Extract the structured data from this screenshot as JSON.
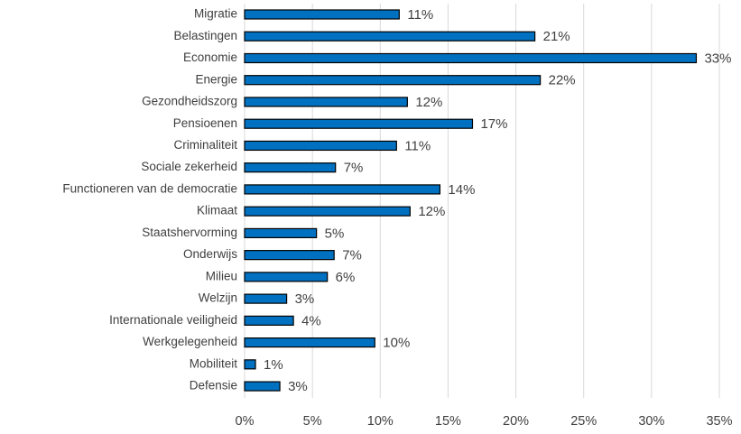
{
  "chart_data": {
    "type": "barh",
    "categories": [
      "Migratie",
      "Belastingen",
      "Economie",
      "Energie",
      "Gezondheidszorg",
      "Pensioenen",
      "Criminaliteit",
      "Sociale zekerheid",
      "Functioneren van de democratie",
      "Klimaat",
      "Staatshervorming",
      "Onderwijs",
      "Milieu",
      "Welzijn",
      "Internationale veiligheid",
      "Werkgelegenheid",
      "Mobiliteit",
      "Defensie"
    ],
    "values": [
      11.4,
      21.4,
      33.3,
      21.8,
      12.0,
      16.8,
      11.2,
      6.7,
      14.4,
      12.2,
      5.3,
      6.6,
      6.1,
      3.1,
      3.6,
      9.6,
      0.8,
      2.6
    ],
    "value_labels": [
      "11%",
      "21%",
      "33%",
      "22%",
      "12%",
      "17%",
      "11%",
      "7%",
      "14%",
      "12%",
      "5%",
      "7%",
      "6%",
      "3%",
      "4%",
      "10%",
      "1%",
      "3%"
    ],
    "color": "#0070c0",
    "xlim": [
      0,
      35
    ],
    "xticks": [
      {
        "value": 0,
        "label": "0%"
      },
      {
        "value": 5,
        "label": "5%"
      },
      {
        "value": 10,
        "label": "10%"
      },
      {
        "value": 15,
        "label": "15%"
      },
      {
        "value": 20,
        "label": "20%"
      },
      {
        "value": 25,
        "label": "25%"
      },
      {
        "value": 30,
        "label": "30%"
      },
      {
        "value": 35,
        "label": "35%"
      }
    ],
    "grid": true
  }
}
